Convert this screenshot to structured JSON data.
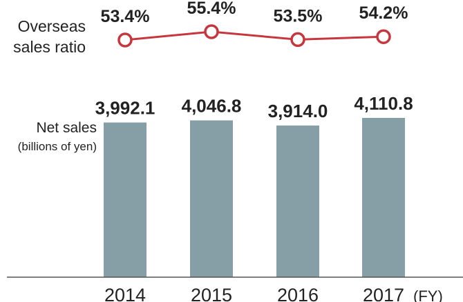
{
  "chart_data": {
    "type": "bar",
    "categories": [
      "2014",
      "2015",
      "2016",
      "2017"
    ],
    "x_unit": "(FY)",
    "bar_series": {
      "label_line1": "Net sales",
      "label_line2": "(billions of yen)",
      "values": [
        3992.1,
        4046.8,
        3914.0,
        4110.8
      ],
      "value_labels": [
        "3,992.1",
        "4,046.8",
        "3,914.0",
        "4,110.8"
      ],
      "color": "#869ea6"
    },
    "line_series": {
      "label_line1": "Overseas",
      "label_line2": "sales ratio",
      "values": [
        53.4,
        55.4,
        53.5,
        54.2
      ],
      "value_labels": [
        "53.4%",
        "55.4%",
        "53.5%",
        "54.2%"
      ],
      "color": "#c8363d"
    },
    "ylim": [
      0,
      4110.8
    ],
    "grid": false
  }
}
